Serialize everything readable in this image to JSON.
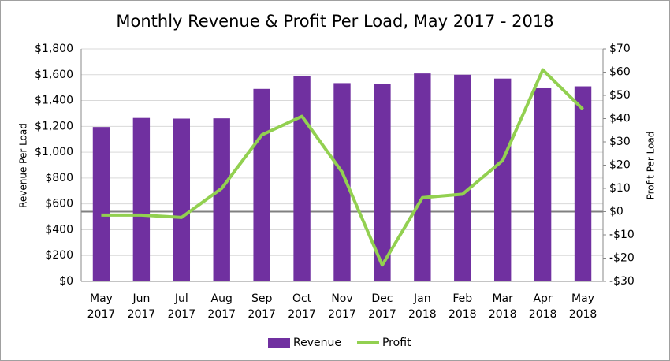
{
  "chart_data": {
    "type": "bar-line",
    "title": "Monthly Revenue & Profit Per Load, May 2017 - 2018",
    "y_label": "Revenue Per Load",
    "y2_label": "Profit Per Load",
    "categories": [
      "May 2017",
      "Jun 2017",
      "Jul 2017",
      "Aug 2017",
      "Sep 2017",
      "Oct 2017",
      "Nov 2017",
      "Dec 2017",
      "Jan 2018",
      "Feb 2018",
      "Mar 2018",
      "Apr 2018",
      "May 2018"
    ],
    "series": [
      {
        "name": "Revenue",
        "type": "bar",
        "color": "#7030a0",
        "values": [
          1195,
          1265,
          1260,
          1262,
          1490,
          1590,
          1535,
          1530,
          1610,
          1600,
          1570,
          1495,
          1510
        ]
      },
      {
        "name": "Profit",
        "type": "line",
        "axis": "y2",
        "color": "#92d050",
        "values": [
          -1.5,
          -1.5,
          -2.5,
          10,
          33,
          41,
          17,
          -23,
          6,
          7.5,
          22,
          61,
          44
        ]
      }
    ],
    "ylim": [
      0,
      1800
    ],
    "yticks": [
      {
        "value": 0,
        "label": "$0"
      },
      {
        "value": 200,
        "label": "$200"
      },
      {
        "value": 400,
        "label": "$400"
      },
      {
        "value": 600,
        "label": "$600"
      },
      {
        "value": 800,
        "label": "$800"
      },
      {
        "value": 1000,
        "label": "$1,000"
      },
      {
        "value": 1200,
        "label": "$1,200"
      },
      {
        "value": 1400,
        "label": "$1,400"
      },
      {
        "value": 1600,
        "label": "$1,600"
      },
      {
        "value": 1800,
        "label": "$1,800"
      }
    ],
    "y2lim": [
      -30,
      70
    ],
    "y2ticks": [
      {
        "value": -30,
        "label": "-$30"
      },
      {
        "value": -20,
        "label": "-$20"
      },
      {
        "value": -10,
        "label": "-$10"
      },
      {
        "value": 0,
        "label": "$0"
      },
      {
        "value": 10,
        "label": "$10"
      },
      {
        "value": 20,
        "label": "$20"
      },
      {
        "value": 30,
        "label": "$30"
      },
      {
        "value": 40,
        "label": "$40"
      },
      {
        "value": 50,
        "label": "$50"
      },
      {
        "value": 60,
        "label": "$60"
      },
      {
        "value": 70,
        "label": "$70"
      }
    ],
    "grid": true,
    "legend": "bottom"
  }
}
